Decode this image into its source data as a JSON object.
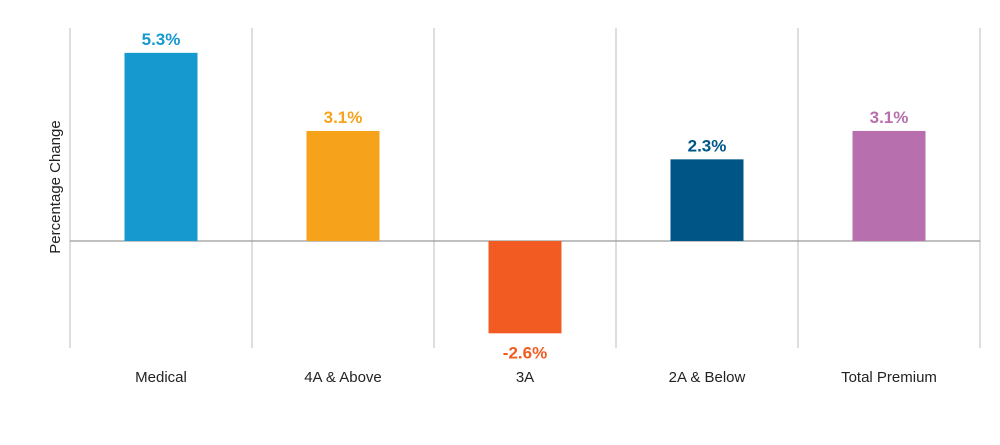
{
  "chart_data": {
    "type": "bar",
    "title": "",
    "xlabel": "",
    "ylabel": "Percentage Change",
    "categories": [
      "Medical",
      "4A & Above",
      "3A",
      "2A & Below",
      "Total Premium"
    ],
    "values": [
      5.3,
      3.1,
      -2.6,
      2.3,
      3.1
    ],
    "value_labels": [
      "5.3%",
      "3.1%",
      "-2.6%",
      "2.3%",
      "3.1%"
    ],
    "colors": [
      "#1599cf",
      "#f7a21b",
      "#f25c22",
      "#005587",
      "#b86fad"
    ],
    "ylim": [
      -3.0,
      6.0
    ],
    "grid": "vertical separators between categories",
    "legend": "none"
  }
}
